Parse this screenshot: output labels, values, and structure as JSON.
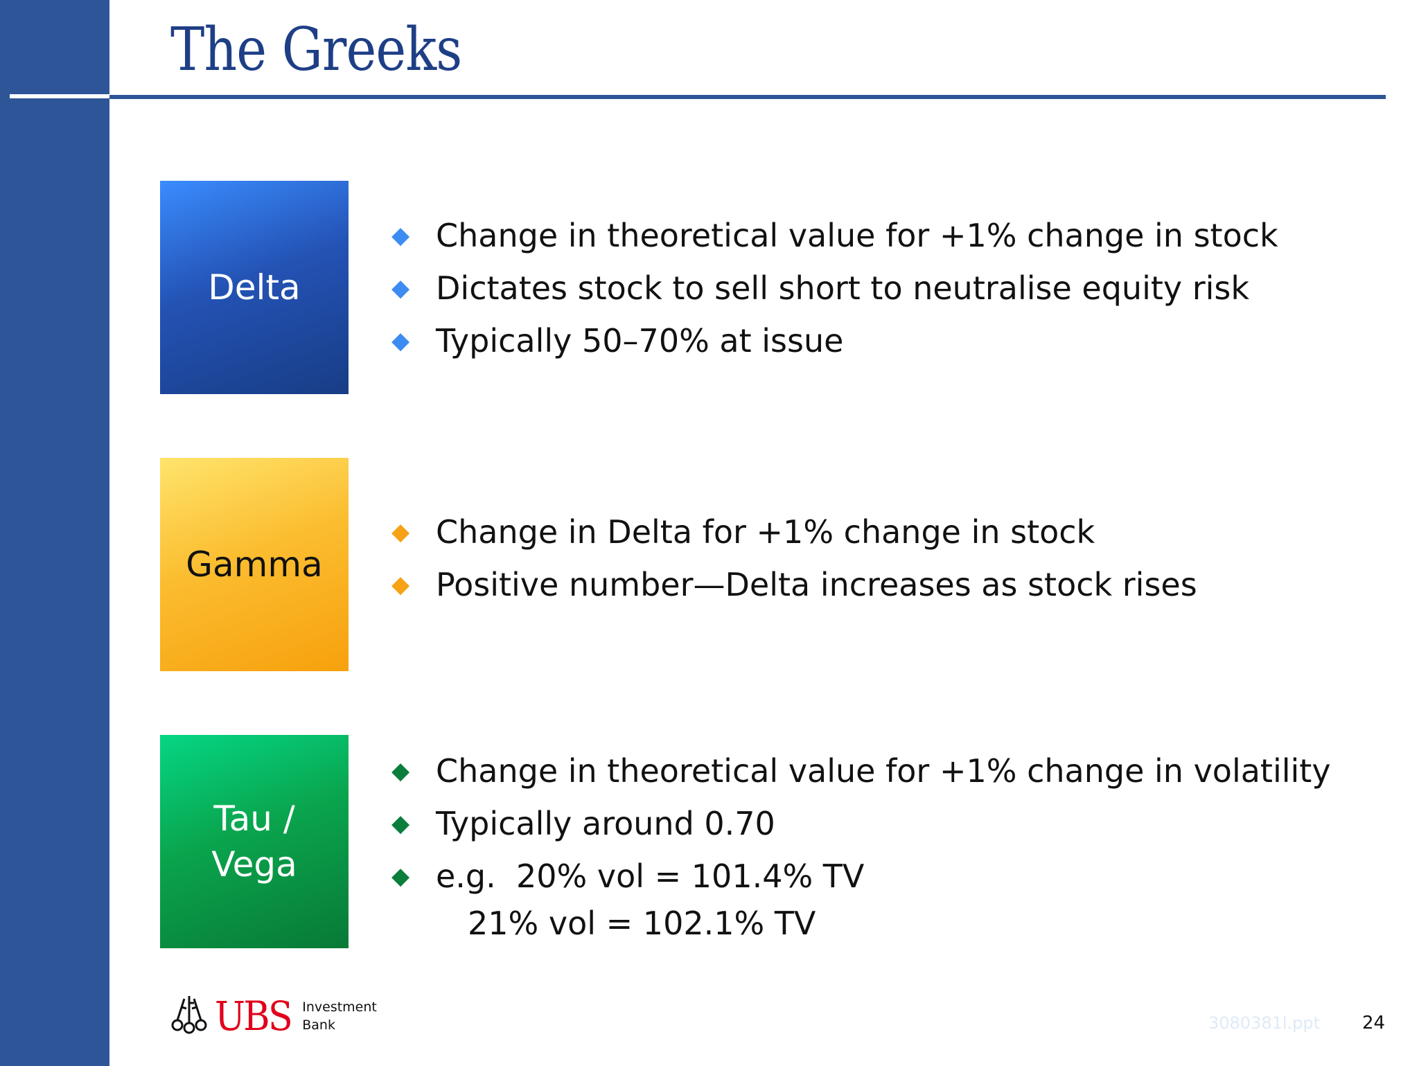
{
  "page": {
    "title": "The Greeks",
    "page_number": "24",
    "file_ref": "3080381l.ppt"
  },
  "logo": {
    "name": "UBS",
    "line1": "Investment",
    "line2": "Bank"
  },
  "greeks": [
    {
      "label": "Delta",
      "color": "#2453b5",
      "bullets": [
        "Change in theoretical value for +1% change in stock",
        "Dictates stock to sell short to neutralise equity risk",
        "Typically 50–70% at issue"
      ]
    },
    {
      "label": "Gamma",
      "color": "#f7a10d",
      "bullets": [
        "Change in Delta for +1% change in stock",
        "Positive number—Delta increases as stock rises"
      ]
    },
    {
      "label": "Tau /\nVega",
      "color": "#0aa44d",
      "bullets": [
        "Change in theoretical value for +1% change in volatility",
        "Typically around 0.70",
        "e.g.  20% vol = 101.4% TV"
      ],
      "example_continuation": "21% vol = 102.1% TV"
    }
  ],
  "icons": {
    "bullet": "diamond-bullet-icon",
    "logo": "ubs-keys-icon"
  }
}
